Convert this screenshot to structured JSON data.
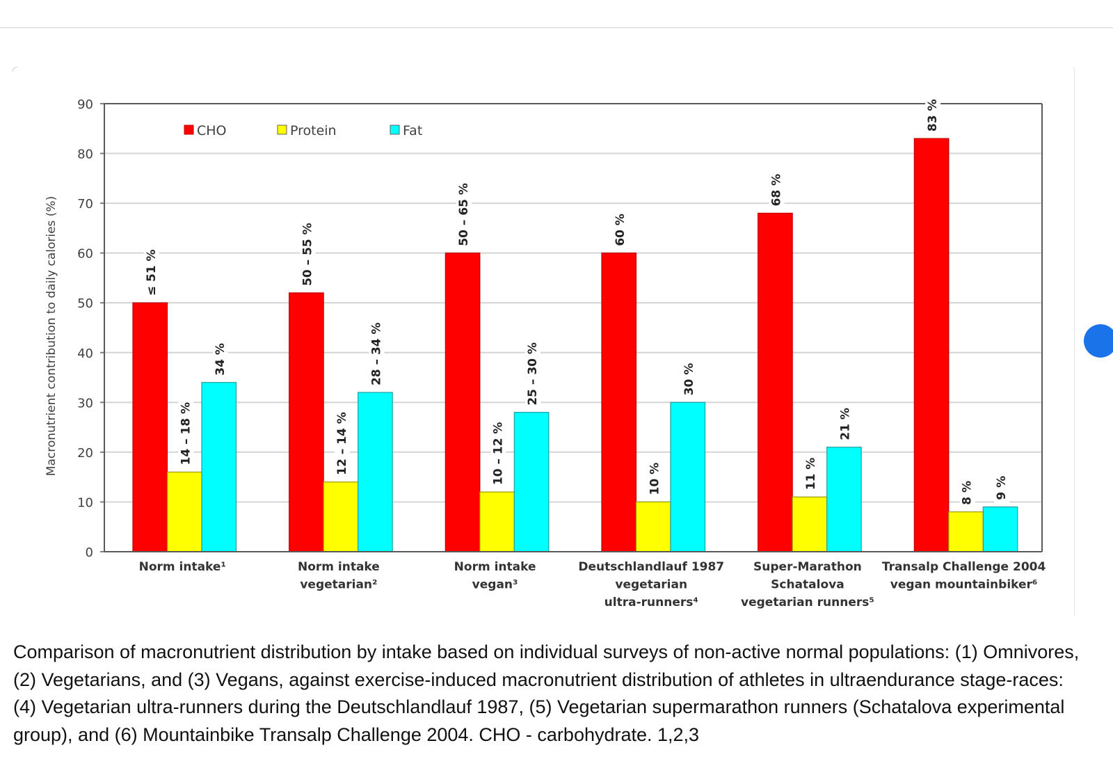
{
  "chart_data": {
    "type": "bar",
    "title": "",
    "xlabel": "",
    "ylabel": "Macronutrient contribution to daily calories  (%)",
    "ylim": [
      0,
      90
    ],
    "yticks": [
      0,
      10,
      20,
      30,
      40,
      50,
      60,
      70,
      80,
      90
    ],
    "grid": true,
    "legend_position": "top-left",
    "categories": [
      [
        "Norm intake¹"
      ],
      [
        "Norm intake",
        "vegetarian²"
      ],
      [
        "Norm intake",
        "vegan³"
      ],
      [
        "Deutschlandlauf 1987",
        "vegetarian",
        "ultra-runners⁴"
      ],
      [
        "Super-Marathon",
        "Schatalova",
        "vegetarian runners⁵"
      ],
      [
        "Transalp Challenge 2004",
        "vegan mountainbiker⁶"
      ]
    ],
    "series": [
      {
        "name": "CHO",
        "color": "#ff0000",
        "values": [
          50,
          52,
          60,
          60,
          68,
          83
        ],
        "labels": [
          "≤ 51 %",
          "50 – 55 %",
          "50 – 65 %",
          "60 %",
          "68 %",
          "83 %"
        ]
      },
      {
        "name": "Protein",
        "color": "#ffff00",
        "values": [
          16,
          14,
          12,
          10,
          11,
          8
        ],
        "labels": [
          "14 – 18 %",
          "12 – 14 %",
          "10 – 12 %",
          "10 %",
          "11 %",
          "8 %"
        ]
      },
      {
        "name": "Fat",
        "color": "#00ffff",
        "values": [
          34,
          32,
          28,
          30,
          21,
          9
        ],
        "labels": [
          "34 %",
          "28 – 34 %",
          "25 – 30 %",
          "30 %",
          "21 %",
          "9 %"
        ]
      }
    ]
  },
  "caption": {
    "text": "Comparison of macronutrient distribution by intake based on individual surveys of non-active normal populations: (1) Omnivores, (2) Vegetarians, and (3) Vegans, against exercise-induced macronutrient distribution of athletes in ultraendurance stage-races: (4) Vegetarian ultra-runners during the Deutschlandlauf 1987, (5) Vegetarian supermarathon runners (Schatalova experimental group), and (6) Mountainbike Transalp Challenge 2004. CHO - carbohydrate. 1,2,3"
  }
}
